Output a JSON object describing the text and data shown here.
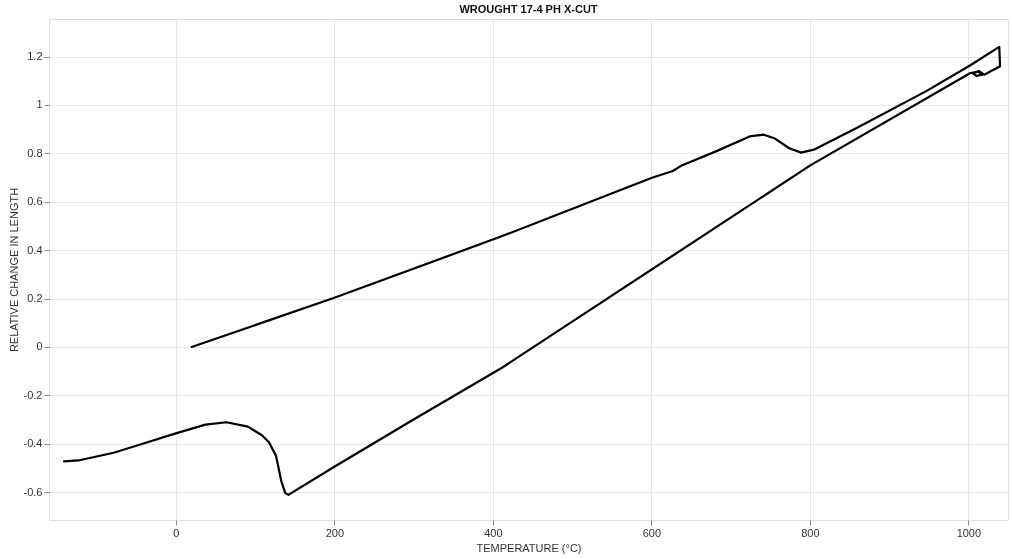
{
  "chart_data": {
    "type": "line",
    "title": "WROUGHT 17-4 PH X-CUT",
    "xlabel": "TEMPERATURE (°C)",
    "ylabel": "RELATIVE CHANGE IN LENGTH",
    "xlim": [
      -160,
      1050
    ],
    "ylim": [
      -0.715,
      1.355
    ],
    "xticks": [
      0,
      200,
      400,
      600,
      800,
      1000
    ],
    "yticks": [
      -0.6,
      -0.4,
      -0.2,
      0,
      0.2,
      0.4,
      0.6,
      0.8,
      1,
      1.2
    ],
    "grid": true,
    "marker": "none",
    "line_style": "solid",
    "series": [
      {
        "color": "#000000",
        "x": [
          20,
          200,
          411,
          600,
          627,
          639,
          680,
          724,
          742,
          756,
          774,
          789,
          805,
          859,
          948,
          1002,
          1039,
          1040,
          1020,
          1013,
          1006,
          1010,
          1018,
          1012,
          1002,
          800,
          411,
          300,
          200,
          142,
          138,
          133,
          126.5,
          117.6,
          108.7,
          90.9,
          64,
          37.4,
          0,
          -42.8,
          -78.4,
          -123,
          -141
        ],
        "values": [
          0,
          0.203,
          0.457,
          0.698,
          0.727,
          0.751,
          0.806,
          0.87,
          0.877,
          0.861,
          0.821,
          0.803,
          0.815,
          0.905,
          1.059,
          1.163,
          1.24,
          1.16,
          1.125,
          1.14,
          1.13,
          1.12,
          1.125,
          1.138,
          1.131,
          0.749,
          -0.087,
          -0.3,
          -0.495,
          -0.611,
          -0.603,
          -0.553,
          -0.451,
          -0.394,
          -0.365,
          -0.329,
          -0.311,
          -0.321,
          -0.357,
          -0.401,
          -0.437,
          -0.469,
          -0.473
        ]
      }
    ]
  }
}
